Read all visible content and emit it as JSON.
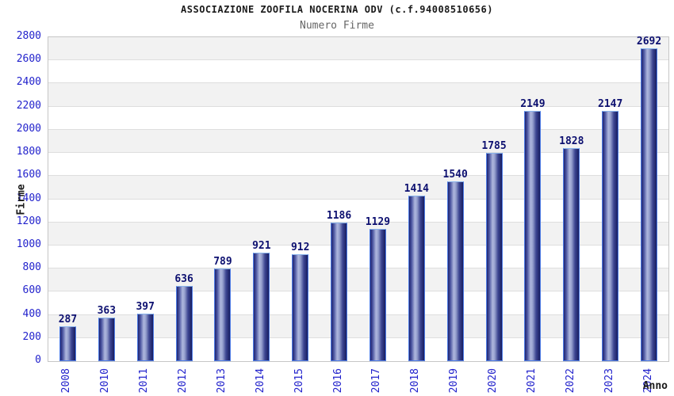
{
  "header": {
    "title": "ASSOCIAZIONE ZOOFILA NOCERINA ODV (c.f.94008510656)",
    "subtitle": "Numero Firme"
  },
  "chart_data": {
    "type": "bar",
    "title": "ASSOCIAZIONE ZOOFILA NOCERINA ODV (c.f.94008510656)",
    "subtitle": "Numero Firme",
    "xlabel": "Anno",
    "ylabel": "Firme",
    "categories": [
      "2008",
      "2010",
      "2011",
      "2012",
      "2013",
      "2014",
      "2015",
      "2016",
      "2017",
      "2018",
      "2019",
      "2020",
      "2021",
      "2022",
      "2023",
      "2024"
    ],
    "values": [
      287,
      363,
      397,
      636,
      789,
      921,
      912,
      1186,
      1129,
      1414,
      1540,
      1785,
      2149,
      1828,
      2147,
      2692
    ],
    "ylim": [
      0,
      2800
    ],
    "ytick_step": 200,
    "grid": "horizontal",
    "band_fill": "alternating 200-unit gray/white bands",
    "legend": "none",
    "bar_value_labels": true
  },
  "colors": {
    "bg": "#ffffff",
    "title": "#1a1a1a",
    "subtitle": "#666666",
    "tick": "#2222cc",
    "value_label": "#0d1070",
    "band": "#f2f2f2",
    "grid": "#dedede",
    "plot_border": "#c6c6c6",
    "bar_border": "#4d7ce6",
    "bar_border_top": "#8ab4ec",
    "bar_dark": "#1f2470",
    "bar_mid": "#4b55a0",
    "bar_light": "#aeb7de"
  }
}
